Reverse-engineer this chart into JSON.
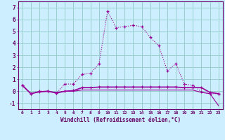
{
  "xlabel": "Windchill (Refroidissement éolien,°C)",
  "hours": [
    0,
    1,
    2,
    3,
    4,
    5,
    6,
    7,
    8,
    9,
    10,
    11,
    12,
    13,
    14,
    15,
    16,
    17,
    18,
    19,
    20,
    21,
    22,
    23
  ],
  "temp": [
    0.5,
    -0.2,
    0.0,
    0.0,
    -0.15,
    0.6,
    0.6,
    1.4,
    1.5,
    2.3,
    6.7,
    5.3,
    5.4,
    5.5,
    5.4,
    4.5,
    3.8,
    1.7,
    2.3,
    0.6,
    0.5,
    -0.05,
    -0.2,
    -0.2
  ],
  "wc1": [
    0.5,
    -0.2,
    -0.05,
    0.0,
    -0.15,
    0.0,
    0.05,
    0.3,
    0.3,
    0.35,
    0.35,
    0.35,
    0.35,
    0.35,
    0.35,
    0.35,
    0.35,
    0.35,
    0.35,
    0.3,
    0.3,
    0.3,
    -0.1,
    -0.2
  ],
  "wc2": [
    0.5,
    -0.2,
    -0.05,
    0.0,
    -0.1,
    0.0,
    0.0,
    0.1,
    0.1,
    0.1,
    0.1,
    0.1,
    0.1,
    0.1,
    0.1,
    0.1,
    0.1,
    0.1,
    0.1,
    0.1,
    0.1,
    -0.1,
    -0.2,
    -1.2
  ],
  "line_color": "#990099",
  "bg_color": "#cceeff",
  "grid_color": "#99cccc",
  "axis_color": "#660066",
  "ylim": [
    -1.5,
    7.5
  ],
  "yticks": [
    -1,
    0,
    1,
    2,
    3,
    4,
    5,
    6,
    7
  ],
  "figsize": [
    3.2,
    2.0
  ],
  "dpi": 100
}
